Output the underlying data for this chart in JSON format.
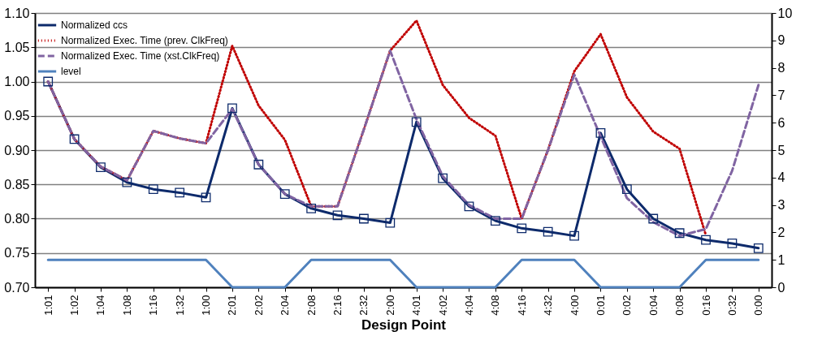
{
  "chart_data": {
    "type": "line",
    "xlabel": "Design Point",
    "categories": [
      "1:01",
      "1:02",
      "1:04",
      "1:08",
      "1:16",
      "1:32",
      "1:00",
      "2:01",
      "2:02",
      "2:04",
      "2:08",
      "2:16",
      "2:32",
      "2:00",
      "4:01",
      "4:02",
      "4:04",
      "4:08",
      "4:16",
      "4:32",
      "4:00",
      "0:01",
      "0:02",
      "0:04",
      "0:08",
      "0:16",
      "0:32",
      "0:00"
    ],
    "series": [
      {
        "name": "Normalized ccs",
        "color": "#0d2a6b",
        "marker": "square",
        "line_style": "solid",
        "values": [
          1.0,
          0.916,
          0.875,
          0.853,
          0.843,
          0.838,
          0.831,
          0.961,
          0.879,
          0.836,
          0.815,
          0.805,
          0.8,
          0.794,
          0.941,
          0.859,
          0.818,
          0.797,
          0.786,
          0.781,
          0.775,
          0.925,
          0.843,
          0.8,
          0.779,
          0.769,
          0.764,
          0.757
        ]
      },
      {
        "name": "Normalized Exec. Time (prev. ClkFreq)",
        "color": "#c00000",
        "marker": "none",
        "line_style": "dotted",
        "values": [
          1.0,
          0.916,
          0.876,
          0.856,
          0.928,
          0.917,
          0.91,
          1.052,
          0.965,
          0.915,
          0.818,
          0.818,
          0.93,
          1.045,
          1.089,
          0.995,
          0.947,
          0.921,
          0.8,
          0.9,
          1.015,
          1.069,
          0.977,
          0.927,
          0.902,
          0.776,
          null,
          null
        ]
      },
      {
        "name": "Normalized Exec. Time (xst.ClkFreq)",
        "color": "#8064a2",
        "marker": "none",
        "line_style": "dashed",
        "values": [
          1.0,
          0.916,
          0.876,
          0.856,
          0.928,
          0.917,
          0.91,
          0.96,
          0.879,
          0.836,
          0.818,
          0.818,
          0.93,
          1.045,
          0.945,
          0.862,
          0.82,
          0.8,
          0.8,
          0.9,
          1.01,
          0.92,
          0.83,
          0.795,
          0.775,
          0.785,
          0.87,
          0.995
        ]
      },
      {
        "name": "level",
        "color": "#4f81bd",
        "marker": "none",
        "line_style": "solid",
        "axis": "y2",
        "values": [
          1,
          1,
          1,
          1,
          1,
          1,
          1,
          0,
          0,
          0,
          1,
          1,
          1,
          1,
          0,
          0,
          0,
          0,
          1,
          1,
          1,
          0,
          0,
          0,
          0,
          1,
          1,
          1
        ]
      }
    ],
    "ylim": [
      0.7,
      1.1
    ],
    "yticks": [
      {
        "value": 0.7,
        "label": "0.70"
      },
      {
        "value": 0.75,
        "label": "0.75"
      },
      {
        "value": 0.8,
        "label": "0.80"
      },
      {
        "value": 0.85,
        "label": "0.85"
      },
      {
        "value": 0.9,
        "label": "0.90"
      },
      {
        "value": 0.95,
        "label": "0.95"
      },
      {
        "value": 1.0,
        "label": "1.00"
      },
      {
        "value": 1.05,
        "label": "1.05"
      },
      {
        "value": 1.1,
        "label": "1.10"
      }
    ],
    "y2lim": [
      0,
      10
    ],
    "y2ticks": [
      0,
      1,
      2,
      3,
      4,
      5,
      6,
      7,
      8,
      9,
      10
    ],
    "grid": "y",
    "legend": "top left"
  }
}
